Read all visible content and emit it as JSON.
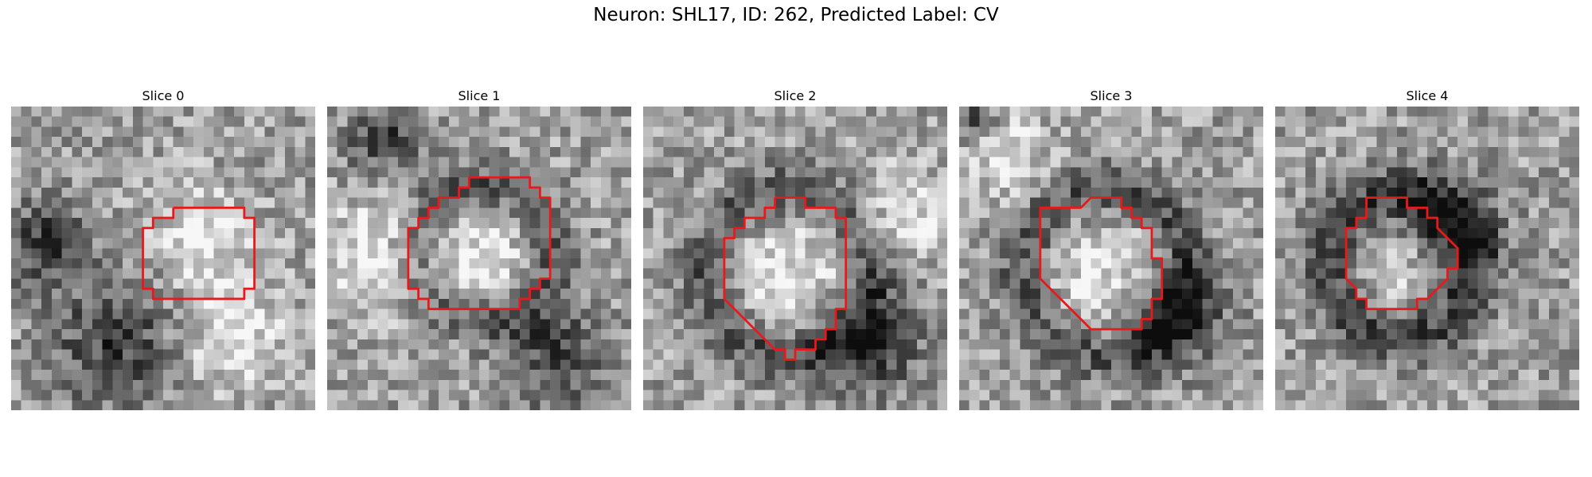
{
  "figure": {
    "title": "Neuron: SHL17, ID: 262, Predicted Label: CV"
  },
  "panels": [
    {
      "title": "Slice 0",
      "contour": [
        [
          16,
          10
        ],
        [
          23,
          10
        ],
        [
          23,
          11
        ],
        [
          24,
          11
        ],
        [
          24,
          18
        ],
        [
          23,
          18
        ],
        [
          23,
          19
        ],
        [
          22,
          19
        ],
        [
          15,
          19
        ],
        [
          14,
          19
        ],
        [
          14,
          18
        ],
        [
          13,
          18
        ],
        [
          13,
          12
        ],
        [
          14,
          12
        ],
        [
          14,
          11
        ],
        [
          16,
          11
        ],
        [
          16,
          10
        ]
      ],
      "texture": {
        "bright": [
          [
            18,
            12,
            3.5
          ],
          [
            21,
            22,
            4
          ]
        ],
        "dark": [
          [
            10,
            23,
            4.5
          ],
          [
            3,
            13,
            3
          ]
        ]
      }
    },
    {
      "title": "Slice 1",
      "contour": [
        [
          14,
          7
        ],
        [
          20,
          7
        ],
        [
          20,
          8
        ],
        [
          21,
          8
        ],
        [
          21,
          9
        ],
        [
          22,
          9
        ],
        [
          22,
          17
        ],
        [
          21,
          17
        ],
        [
          21,
          18
        ],
        [
          20,
          18
        ],
        [
          20,
          19
        ],
        [
          19,
          19
        ],
        [
          19,
          20
        ],
        [
          18,
          20
        ],
        [
          11,
          20
        ],
        [
          10,
          20
        ],
        [
          10,
          19
        ],
        [
          9,
          19
        ],
        [
          9,
          18
        ],
        [
          8,
          18
        ],
        [
          8,
          12
        ],
        [
          9,
          12
        ],
        [
          9,
          11
        ],
        [
          10,
          11
        ],
        [
          10,
          10
        ],
        [
          11,
          10
        ],
        [
          11,
          9
        ],
        [
          12,
          9
        ],
        [
          13,
          9
        ],
        [
          13,
          8
        ],
        [
          14,
          8
        ],
        [
          14,
          7
        ]
      ],
      "texture": {
        "ring": [
          15,
          14,
          6.5,
          2
        ],
        "bright": [
          [
            15,
            15,
            5
          ],
          [
            4,
            14,
            4
          ]
        ],
        "dark": [
          [
            22,
            24,
            3.5
          ],
          [
            5,
            3,
            2.5
          ]
        ]
      }
    },
    {
      "title": "Slice 2",
      "contour": [
        [
          13,
          9
        ],
        [
          16,
          9
        ],
        [
          16,
          10
        ],
        [
          19,
          10
        ],
        [
          19,
          11
        ],
        [
          20,
          11
        ],
        [
          20,
          20
        ],
        [
          19,
          20
        ],
        [
          19,
          22
        ],
        [
          18,
          22
        ],
        [
          18,
          23
        ],
        [
          17,
          23
        ],
        [
          17,
          24
        ],
        [
          15,
          24
        ],
        [
          15,
          25
        ],
        [
          14,
          25
        ],
        [
          14,
          24
        ],
        [
          13,
          24
        ],
        [
          11,
          22
        ],
        [
          10,
          21
        ],
        [
          9,
          20
        ],
        [
          8,
          19
        ],
        [
          8,
          13
        ],
        [
          9,
          13
        ],
        [
          9,
          12
        ],
        [
          10,
          12
        ],
        [
          10,
          11
        ],
        [
          11,
          11
        ],
        [
          12,
          11
        ],
        [
          12,
          10
        ],
        [
          13,
          10
        ],
        [
          13,
          9
        ]
      ],
      "texture": {
        "ring": [
          14,
          16,
          8,
          2
        ],
        "bright": [
          [
            14,
            16,
            5
          ],
          [
            25,
            10,
            3
          ]
        ],
        "dark": [
          [
            22,
            23,
            3.5
          ]
        ]
      }
    },
    {
      "title": "Slice 3",
      "contour": [
        [
          9,
          10
        ],
        [
          12,
          10
        ],
        [
          13,
          9
        ],
        [
          16,
          9
        ],
        [
          16,
          10
        ],
        [
          17,
          10
        ],
        [
          17,
          11
        ],
        [
          18,
          11
        ],
        [
          18,
          12
        ],
        [
          19,
          12
        ],
        [
          19,
          13
        ],
        [
          19,
          14
        ],
        [
          19,
          15
        ],
        [
          20,
          15
        ],
        [
          20,
          19
        ],
        [
          19,
          19
        ],
        [
          19,
          21
        ],
        [
          18,
          21
        ],
        [
          18,
          22
        ],
        [
          17,
          22
        ],
        [
          13,
          22
        ],
        [
          12,
          21
        ],
        [
          9,
          18
        ],
        [
          8,
          17
        ],
        [
          8,
          16
        ],
        [
          8,
          10
        ],
        [
          9,
          10
        ]
      ],
      "texture": {
        "ring": [
          14,
          16,
          8,
          2
        ],
        "bright": [
          [
            14,
            16,
            5
          ],
          [
            4,
            4,
            3
          ]
        ],
        "dark": [
          [
            21,
            20,
            3.5
          ],
          [
            1,
            1,
            1.5
          ]
        ]
      }
    },
    {
      "title": "Slice 4",
      "contour": [
        [
          9,
          9
        ],
        [
          13,
          9
        ],
        [
          13,
          10
        ],
        [
          15,
          10
        ],
        [
          15,
          11
        ],
        [
          16,
          11
        ],
        [
          16,
          12
        ],
        [
          18,
          14
        ],
        [
          18,
          16
        ],
        [
          17,
          16
        ],
        [
          17,
          17
        ],
        [
          16,
          18
        ],
        [
          15,
          19
        ],
        [
          14,
          19
        ],
        [
          14,
          20
        ],
        [
          12,
          20
        ],
        [
          9,
          20
        ],
        [
          9,
          19
        ],
        [
          8,
          19
        ],
        [
          8,
          18
        ],
        [
          7,
          17
        ],
        [
          7,
          16
        ],
        [
          7,
          13
        ],
        [
          7,
          12
        ],
        [
          8,
          12
        ],
        [
          8,
          11
        ],
        [
          9,
          11
        ],
        [
          9,
          10
        ],
        [
          9,
          9
        ]
      ],
      "texture": {
        "ring": [
          12,
          15,
          7,
          2
        ],
        "bright": [
          [
            12,
            15,
            3
          ]
        ],
        "dark": [
          [
            16,
            12,
            3.5
          ]
        ]
      }
    }
  ],
  "colors": {
    "contour": "#e8191b"
  }
}
